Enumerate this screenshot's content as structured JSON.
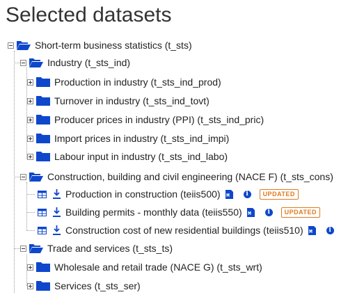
{
  "page_title": "Selected datasets",
  "tree": {
    "root": {
      "label": "Short-term business statistics (t_sts)",
      "expanded": true
    },
    "industry": {
      "label": "Industry (t_sts_ind)",
      "expanded": true,
      "children": [
        {
          "label": "Production in industry (t_sts_ind_prod)"
        },
        {
          "label": "Turnover in industry (t_sts_ind_tovt)"
        },
        {
          "label": "Producer prices in industry (PPI) (t_sts_ind_pric)"
        },
        {
          "label": "Import prices in industry (t_sts_ind_impi)"
        },
        {
          "label": "Labour input in industry (t_sts_ind_labo)"
        }
      ]
    },
    "construction": {
      "label": "Construction, building and civil engineering (NACE F) (t_sts_cons)",
      "expanded": true,
      "datasets": [
        {
          "label": "Production in construction (teiis500)",
          "badge": "UPDATED"
        },
        {
          "label": "Building permits - monthly data (teiis550)",
          "badge": "UPDATED"
        },
        {
          "label": "Construction cost of new residential buildings (teiis510)"
        }
      ]
    },
    "trade": {
      "label": "Trade and services (t_sts_ts)",
      "expanded": true,
      "children": [
        {
          "label": "Wholesale and retail trade (NACE G) (t_sts_wrt)"
        },
        {
          "label": "Services (t_sts_ser)"
        }
      ]
    }
  },
  "icons": {
    "open_folder": "folder-open-icon",
    "closed_folder": "folder-icon",
    "table": "table-icon",
    "download": "download-icon",
    "metadata": "metadata-icon",
    "info": "info-icon"
  },
  "colors": {
    "folder": "#0e47cb",
    "badge": "#e07a1f",
    "info": "#0e47cb"
  }
}
